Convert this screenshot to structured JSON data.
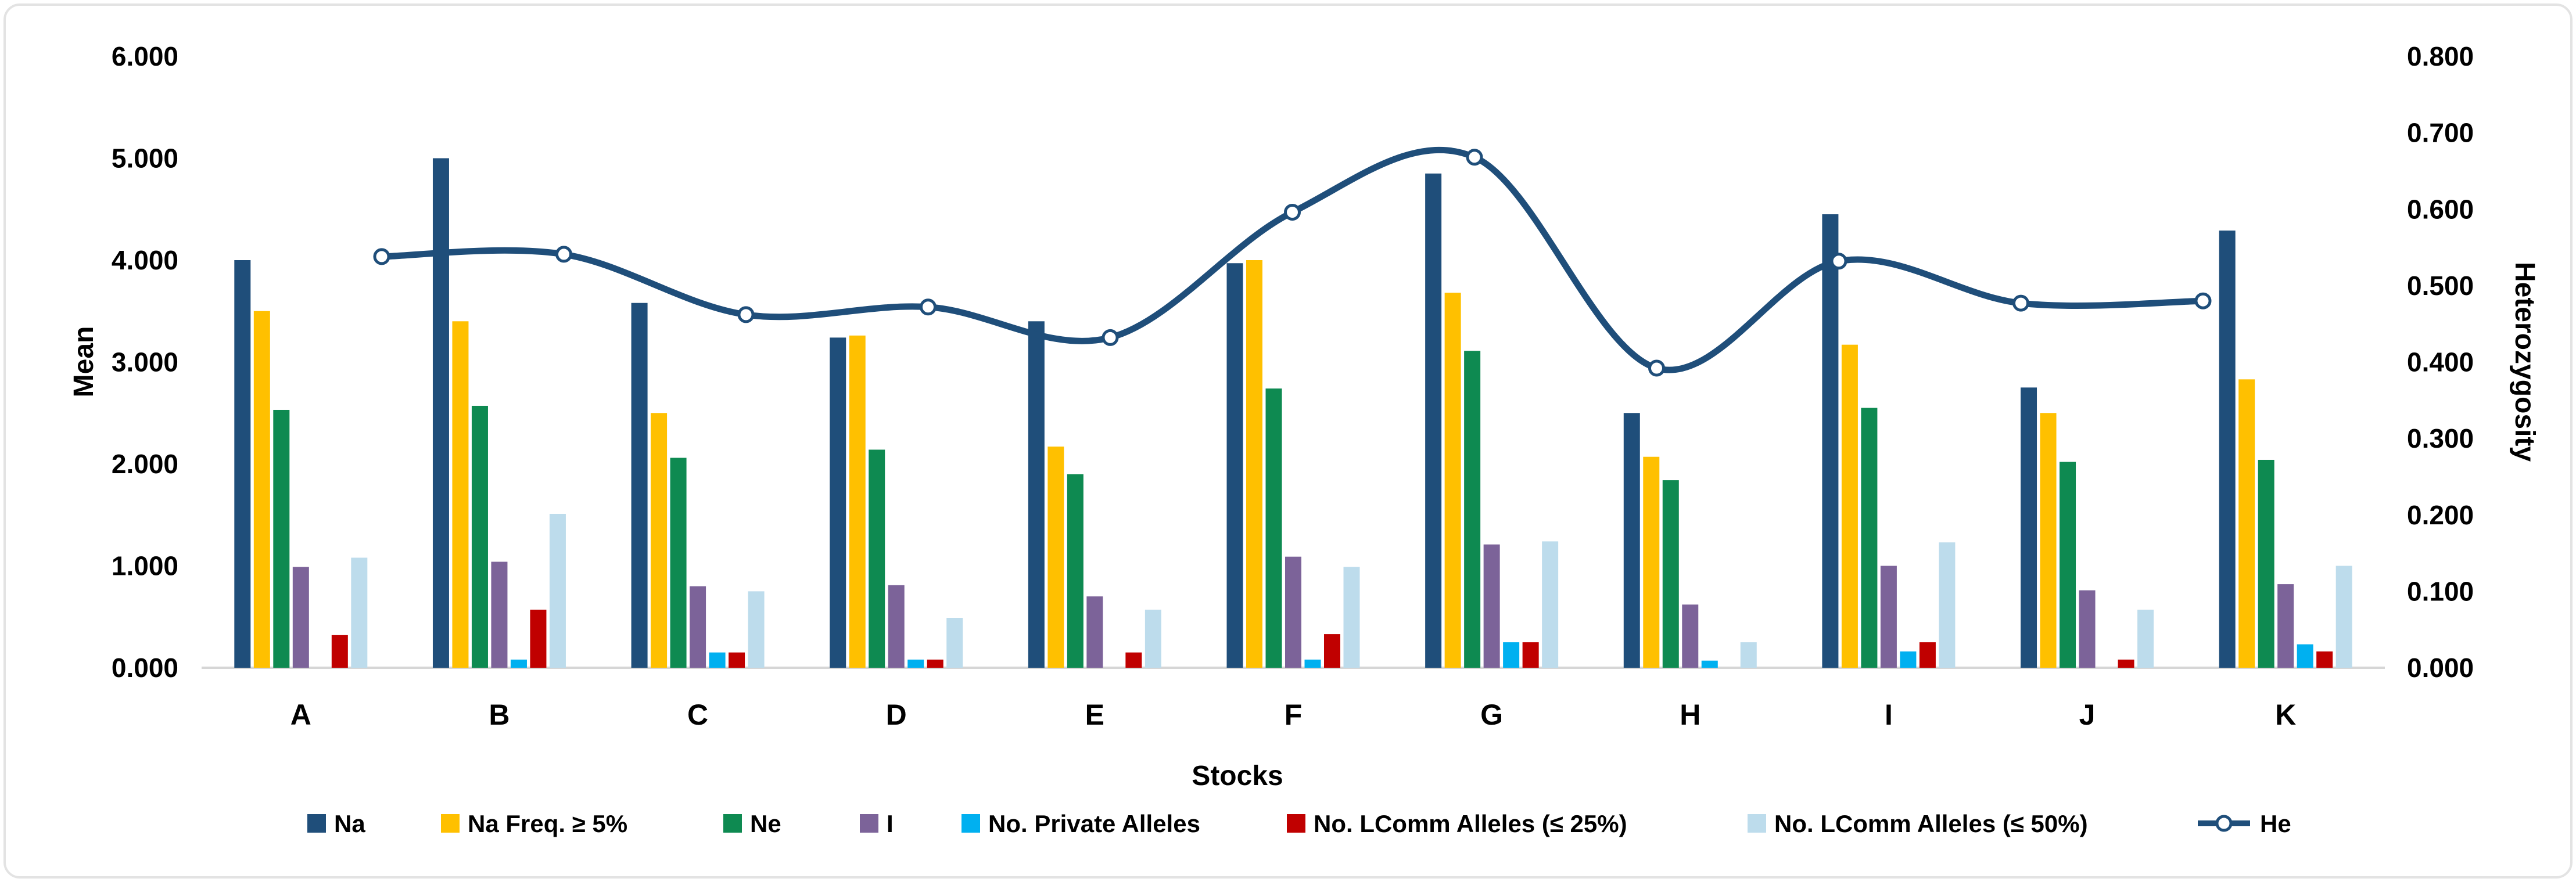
{
  "chart_data": {
    "type": "bar+line-combo",
    "title": "",
    "categories": [
      "A",
      "B",
      "C",
      "D",
      "E",
      "F",
      "G",
      "H",
      "I",
      "J",
      "K"
    ],
    "x_axis_label": "Stocks",
    "left_axis": {
      "label": "Mean",
      "min": 0,
      "max": 6,
      "step": 1,
      "tick_labels": [
        "0.000",
        "1.000",
        "2.000",
        "3.000",
        "4.000",
        "5.000",
        "6.000"
      ]
    },
    "right_axis": {
      "label": "Heterozygosity",
      "min": 0,
      "max": 0.8,
      "step": 0.1,
      "tick_labels": [
        "0.000",
        "0.100",
        "0.200",
        "0.300",
        "0.400",
        "0.500",
        "0.600",
        "0.700",
        "0.800"
      ]
    },
    "grid": "off",
    "legend_position": "bottom",
    "series": [
      {
        "name": "Na",
        "color": "#1F4E7A",
        "values": [
          4.0,
          5.0,
          3.58,
          3.24,
          3.4,
          3.97,
          4.85,
          2.5,
          4.45,
          2.75,
          4.29
        ]
      },
      {
        "name": "Na Freq. ≥ 5%",
        "color": "#FFC000",
        "values": [
          3.5,
          3.4,
          2.5,
          3.26,
          2.17,
          4.0,
          3.68,
          2.07,
          3.17,
          2.5,
          2.83
        ]
      },
      {
        "name": "Ne",
        "color": "#0E8A51",
        "values": [
          2.53,
          2.57,
          2.06,
          2.14,
          1.9,
          2.74,
          3.11,
          1.84,
          2.55,
          2.02,
          2.04
        ]
      },
      {
        "name": "I",
        "color": "#7C6399",
        "values": [
          0.99,
          1.04,
          0.8,
          0.81,
          0.7,
          1.09,
          1.21,
          0.62,
          1.0,
          0.76,
          0.82
        ]
      },
      {
        "name": "No. Private Alleles",
        "color": "#00B0F0",
        "values": [
          0.0,
          0.08,
          0.15,
          0.08,
          0.0,
          0.08,
          0.25,
          0.07,
          0.16,
          0.0,
          0.23
        ]
      },
      {
        "name": "No. LComm Alleles (≤ 25%)",
        "color": "#C00000",
        "values": [
          0.32,
          0.57,
          0.15,
          0.08,
          0.15,
          0.33,
          0.25,
          0.0,
          0.25,
          0.08,
          0.16
        ]
      },
      {
        "name": "No. LComm Alleles (≤ 50%)",
        "color": "#BDDCEC",
        "values": [
          1.08,
          1.51,
          0.75,
          0.49,
          0.57,
          0.99,
          1.24,
          0.25,
          1.23,
          0.57,
          1.0
        ]
      }
    ],
    "line_series": {
      "name": "He",
      "color": "#1F4E7A",
      "axis": "right",
      "marker": "open-circle",
      "values": [
        0.538,
        0.541,
        0.462,
        0.472,
        0.432,
        0.596,
        0.668,
        0.392,
        0.532,
        0.477,
        0.48
      ]
    }
  }
}
